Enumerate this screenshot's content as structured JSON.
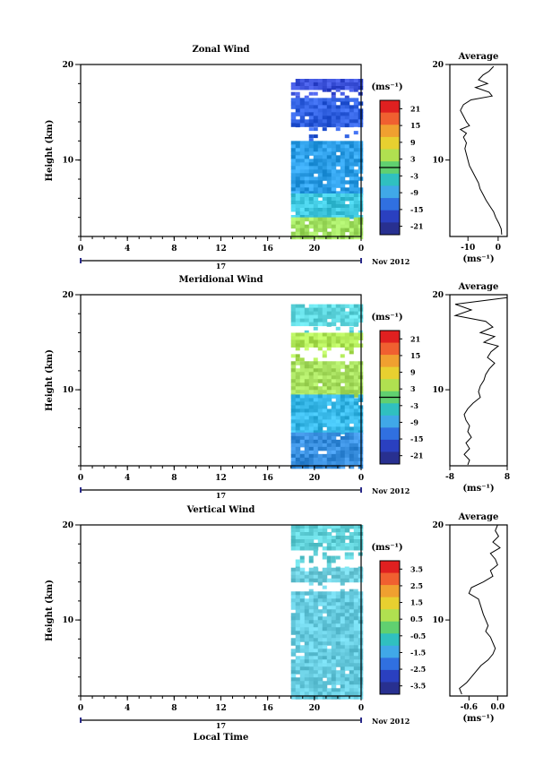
{
  "chart_data": [
    {
      "type": "heatmap",
      "title": "Zonal Wind",
      "ylabel": "Height (km)",
      "y_ticks": [
        "20",
        "10"
      ],
      "x_ticks": [
        "0",
        "4",
        "8",
        "12",
        "16",
        "20",
        "0"
      ],
      "date_label": "17",
      "month_label": "Nov 2012",
      "xlim": [
        0,
        24
      ],
      "ylim": [
        2,
        20
      ],
      "data_hours": [
        18,
        24
      ],
      "colorbar": {
        "unit": "(ms⁻¹)",
        "ticks": [
          "21",
          "15",
          "9",
          "3",
          "-3",
          "-9",
          "-15",
          "-21"
        ],
        "range": [
          -24,
          24
        ],
        "zero_line_value": 0
      },
      "cells": [
        {
          "y0": 18.5,
          "y1": 17.5,
          "color": "#3a50d8"
        },
        {
          "y0": 17.5,
          "y1": 16.5,
          "color": "#ffffff"
        },
        {
          "y0": 16.5,
          "y1": 13.8,
          "color": "#3060e0"
        },
        {
          "y0": 13.8,
          "y1": 12.0,
          "color": "#ffffff"
        },
        {
          "y0": 12.0,
          "y1": 6.5,
          "color": "#2e9fe8"
        },
        {
          "y0": 6.5,
          "y1": 4.0,
          "color": "#40c8e0"
        },
        {
          "y0": 4.0,
          "y1": 2.0,
          "color": "#a0e060"
        }
      ],
      "average_profile": {
        "title": "Average",
        "x_ticks": [
          "-10",
          "0"
        ],
        "xlim": [
          -16,
          3
        ],
        "unit": "(ms⁻¹)",
        "y_ticks": [
          "20",
          "10"
        ],
        "points": [
          [
            -1.5,
            19.8
          ],
          [
            -3.0,
            19.3
          ],
          [
            -5.0,
            18.9
          ],
          [
            -6.5,
            18.4
          ],
          [
            -3.5,
            18.0
          ],
          [
            -7.5,
            17.6
          ],
          [
            -3.0,
            17.1
          ],
          [
            -2.0,
            16.7
          ],
          [
            -9.0,
            16.3
          ],
          [
            -11.5,
            15.8
          ],
          [
            -12.5,
            15.2
          ],
          [
            -11.5,
            14.6
          ],
          [
            -10.5,
            14.0
          ],
          [
            -9.5,
            13.6
          ],
          [
            -12.5,
            13.2
          ],
          [
            -10.5,
            12.8
          ],
          [
            -11.5,
            12.4
          ],
          [
            -10.5,
            11.8
          ],
          [
            -11.0,
            11.2
          ],
          [
            -10.5,
            10.6
          ],
          [
            -10.0,
            10.0
          ],
          [
            -9.5,
            9.4
          ],
          [
            -8.5,
            8.8
          ],
          [
            -7.5,
            8.2
          ],
          [
            -6.5,
            7.6
          ],
          [
            -6.0,
            7.0
          ],
          [
            -5.0,
            6.4
          ],
          [
            -4.0,
            5.8
          ],
          [
            -2.8,
            5.2
          ],
          [
            -1.5,
            4.6
          ],
          [
            -0.8,
            4.0
          ],
          [
            0.2,
            3.4
          ],
          [
            1.0,
            2.8
          ],
          [
            1.2,
            2.2
          ]
        ]
      }
    },
    {
      "type": "heatmap",
      "title": "Meridional Wind",
      "ylabel": "Height (km)",
      "y_ticks": [
        "20",
        "10"
      ],
      "x_ticks": [
        "0",
        "4",
        "8",
        "12",
        "16",
        "20",
        "0"
      ],
      "date_label": "17",
      "month_label": "Nov 2012",
      "xlim": [
        0,
        24
      ],
      "ylim": [
        2,
        20
      ],
      "data_hours": [
        18,
        24
      ],
      "colorbar": {
        "unit": "(ms⁻¹)",
        "ticks": [
          "21",
          "15",
          "9",
          "3",
          "-3",
          "-9",
          "-15",
          "-21"
        ],
        "range": [
          -24,
          24
        ],
        "zero_line_value": 0
      },
      "cells": [
        {
          "y0": 19.0,
          "y1": 17.0,
          "color": "#60d8e0"
        },
        {
          "y0": 17.0,
          "y1": 16.0,
          "color": "#ffffff"
        },
        {
          "y0": 16.0,
          "y1": 14.5,
          "color": "#b0e858"
        },
        {
          "y0": 14.5,
          "y1": 13.0,
          "color": "#ffffff"
        },
        {
          "y0": 13.0,
          "y1": 9.5,
          "color": "#a8e060"
        },
        {
          "y0": 9.5,
          "y1": 5.5,
          "color": "#38b8e8"
        },
        {
          "y0": 5.5,
          "y1": 2.0,
          "color": "#3a90e0"
        }
      ],
      "average_profile": {
        "title": "Average",
        "x_ticks": [
          "-8",
          "8"
        ],
        "xlim": [
          -8,
          8
        ],
        "unit": "(ms⁻¹)",
        "y_ticks": [
          "20",
          "10"
        ],
        "points": [
          [
            8.0,
            19.7
          ],
          [
            -6.5,
            19.0
          ],
          [
            -2.0,
            18.4
          ],
          [
            -6.5,
            17.8
          ],
          [
            2.0,
            17.2
          ],
          [
            4.0,
            16.6
          ],
          [
            0.5,
            16.0
          ],
          [
            4.5,
            15.6
          ],
          [
            1.5,
            15.0
          ],
          [
            5.5,
            14.6
          ],
          [
            3.5,
            14.0
          ],
          [
            2.5,
            13.4
          ],
          [
            4.5,
            12.8
          ],
          [
            3.0,
            12.2
          ],
          [
            2.0,
            11.6
          ],
          [
            1.5,
            11.0
          ],
          [
            0.5,
            10.4
          ],
          [
            0.0,
            9.8
          ],
          [
            0.5,
            9.2
          ],
          [
            -1.5,
            8.6
          ],
          [
            -3.0,
            8.0
          ],
          [
            -4.0,
            7.4
          ],
          [
            -3.5,
            6.8
          ],
          [
            -2.5,
            6.2
          ],
          [
            -3.0,
            5.6
          ],
          [
            -2.0,
            5.0
          ],
          [
            -3.5,
            4.4
          ],
          [
            -2.5,
            3.8
          ],
          [
            -4.0,
            3.2
          ],
          [
            -2.5,
            2.6
          ],
          [
            -3.0,
            2.1
          ]
        ]
      }
    },
    {
      "type": "heatmap",
      "title": "Vertical Wind",
      "ylabel": "Height (km)",
      "xlabel": "Local Time",
      "y_ticks": [
        "20",
        "10"
      ],
      "x_ticks": [
        "0",
        "4",
        "8",
        "12",
        "16",
        "20",
        "0"
      ],
      "date_label": "17",
      "month_label": "Nov 2012",
      "xlim": [
        0,
        24
      ],
      "ylim": [
        2,
        20
      ],
      "data_hours": [
        18,
        24
      ],
      "colorbar": {
        "unit": "(ms⁻¹)",
        "ticks": [
          "3.5",
          "2.5",
          "1.5",
          "0.5",
          "-0.5",
          "-1.5",
          "-2.5",
          "-3.5"
        ],
        "range": [
          -4,
          4
        ],
        "zero_line_value": null
      },
      "cells": [
        {
          "y0": 20.0,
          "y1": 17.5,
          "color": "#60d0d8"
        },
        {
          "y0": 17.5,
          "y1": 15.5,
          "color": "#ffffff"
        },
        {
          "y0": 15.5,
          "y1": 14.0,
          "color": "#70d0e0"
        },
        {
          "y0": 14.0,
          "y1": 13.0,
          "color": "#ffffff"
        },
        {
          "y0": 13.0,
          "y1": 2.0,
          "color": "#68cce0"
        }
      ],
      "average_profile": {
        "title": "Average",
        "x_ticks": [
          "-0.6",
          "0.0"
        ],
        "xlim": [
          -1.0,
          0.2
        ],
        "unit": "(ms⁻¹)",
        "y_ticks": [
          "20",
          "10"
        ],
        "points": [
          [
            0.0,
            20.0
          ],
          [
            -0.05,
            19.4
          ],
          [
            0.02,
            18.8
          ],
          [
            -0.1,
            18.2
          ],
          [
            0.05,
            17.6
          ],
          [
            -0.15,
            17.0
          ],
          [
            -0.05,
            16.4
          ],
          [
            0.0,
            15.8
          ],
          [
            -0.15,
            15.2
          ],
          [
            -0.1,
            14.6
          ],
          [
            -0.3,
            14.0
          ],
          [
            -0.55,
            13.4
          ],
          [
            -0.6,
            12.8
          ],
          [
            -0.4,
            12.2
          ],
          [
            -0.35,
            11.4
          ],
          [
            -0.3,
            10.6
          ],
          [
            -0.25,
            10.0
          ],
          [
            -0.2,
            9.4
          ],
          [
            -0.25,
            8.8
          ],
          [
            -0.15,
            8.2
          ],
          [
            -0.1,
            7.6
          ],
          [
            -0.05,
            7.0
          ],
          [
            -0.1,
            6.4
          ],
          [
            -0.2,
            5.8
          ],
          [
            -0.35,
            5.2
          ],
          [
            -0.45,
            4.6
          ],
          [
            -0.55,
            4.0
          ],
          [
            -0.65,
            3.4
          ],
          [
            -0.8,
            2.8
          ],
          [
            -0.75,
            2.2
          ]
        ]
      }
    }
  ]
}
